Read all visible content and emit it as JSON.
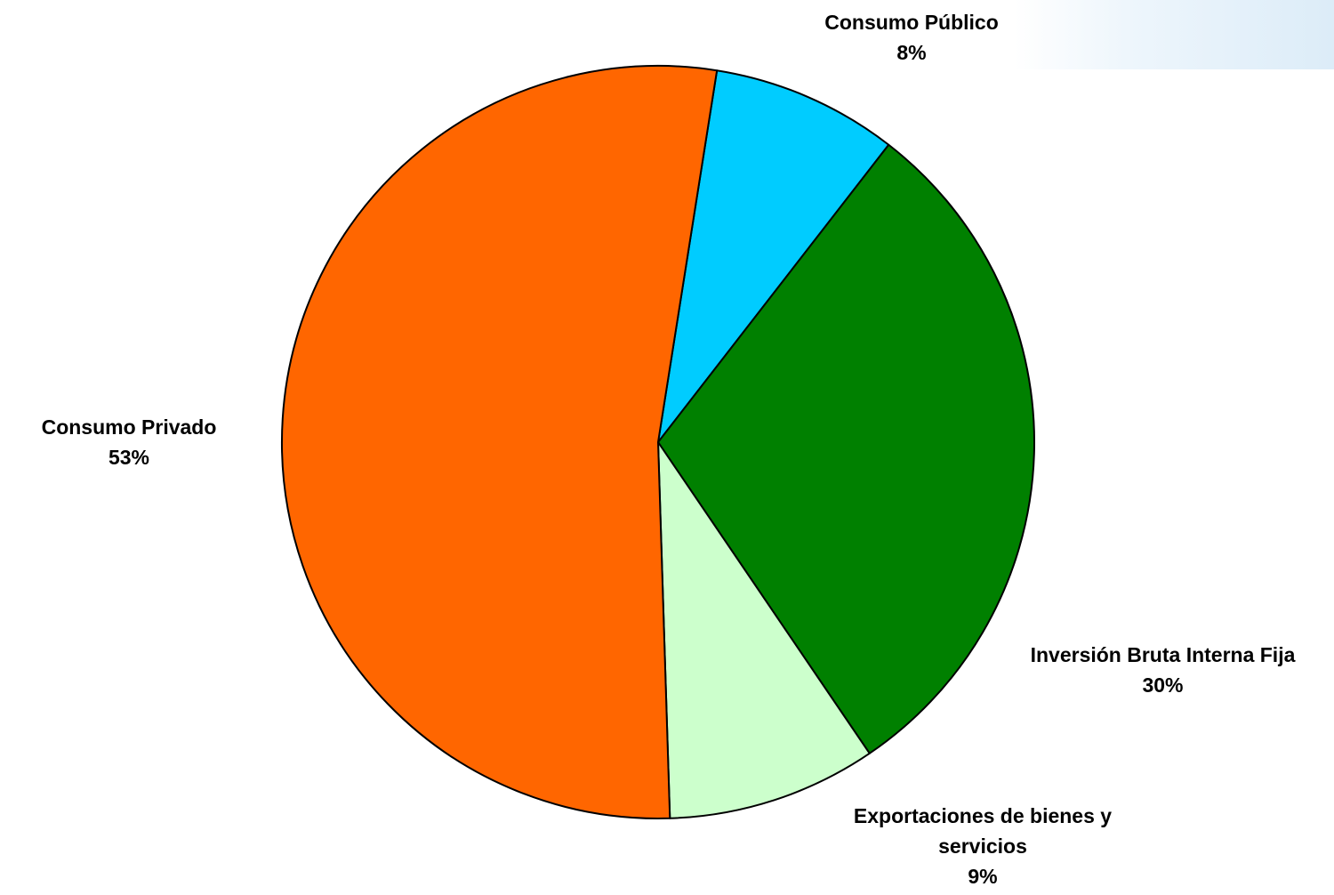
{
  "chart_data": {
    "type": "pie",
    "slices": [
      {
        "label": "Consumo Público",
        "value": 8,
        "value_label": "8%",
        "color": "#00ccff"
      },
      {
        "label": "Inversión Bruta Interna Fija",
        "value": 30,
        "value_label": "30%",
        "color": "#008000"
      },
      {
        "label": "Exportaciones de bienes y servicios",
        "label_lines": [
          "Exportaciones de bienes y",
          "servicios"
        ],
        "value": 9,
        "value_label": "9%",
        "color": "#ccffcc"
      },
      {
        "label": "Consumo Privado",
        "value": 53,
        "value_label": "53%",
        "color": "#ff6600"
      }
    ],
    "start_angle_deg": 9
  }
}
